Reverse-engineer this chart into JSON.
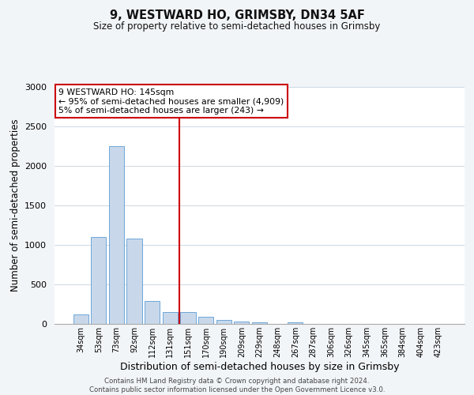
{
  "title": "9, WESTWARD HO, GRIMSBY, DN34 5AF",
  "subtitle": "Size of property relative to semi-detached houses in Grimsby",
  "xlabel": "Distribution of semi-detached houses by size in Grimsby",
  "ylabel": "Number of semi-detached properties",
  "bar_labels": [
    "34sqm",
    "53sqm",
    "73sqm",
    "92sqm",
    "112sqm",
    "131sqm",
    "151sqm",
    "170sqm",
    "190sqm",
    "209sqm",
    "229sqm",
    "248sqm",
    "267sqm",
    "287sqm",
    "306sqm",
    "326sqm",
    "345sqm",
    "365sqm",
    "384sqm",
    "404sqm",
    "423sqm"
  ],
  "bar_values": [
    120,
    1100,
    2250,
    1080,
    290,
    155,
    155,
    90,
    55,
    30,
    20,
    0,
    25,
    0,
    0,
    0,
    0,
    0,
    0,
    0,
    0
  ],
  "bar_color": "#c8d8ea",
  "bar_edgecolor": "#5b9bd5",
  "ylim": [
    0,
    3000
  ],
  "yticks": [
    0,
    500,
    1000,
    1500,
    2000,
    2500,
    3000
  ],
  "vline_x": 5.5,
  "vline_color": "#cc0000",
  "annotation_title": "9 WESTWARD HO: 145sqm",
  "annotation_line1": "← 95% of semi-detached houses are smaller (4,909)",
  "annotation_line2": "5% of semi-detached houses are larger (243) →",
  "annotation_box_color": "#ffffff",
  "annotation_box_edgecolor": "#cc0000",
  "footer_line1": "Contains HM Land Registry data © Crown copyright and database right 2024.",
  "footer_line2": "Contains public sector information licensed under the Open Government Licence v3.0.",
  "background_color": "#f2f5f8",
  "plot_background_color": "#ffffff",
  "grid_color": "#cdd8e3"
}
